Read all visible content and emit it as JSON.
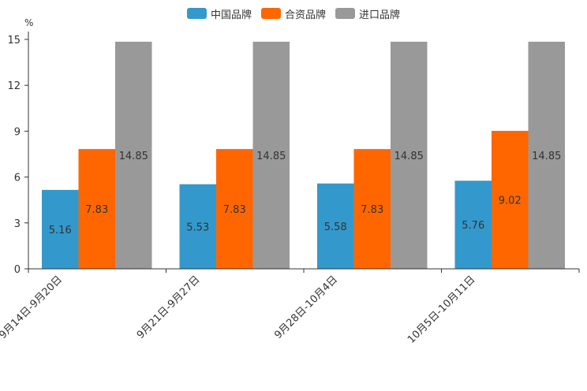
{
  "chart_data": {
    "type": "bar",
    "unit_label": "%",
    "categories": [
      "9月14日-9月20日",
      "9月21日-9月27日",
      "9月28日-10月4日",
      "10月5日-10月11日"
    ],
    "series": [
      {
        "name": "中国品牌",
        "color": "#3399cc",
        "values": [
          5.16,
          5.53,
          5.58,
          5.76
        ],
        "labels": [
          "5.16",
          "5.53",
          "5.58",
          "5.76"
        ]
      },
      {
        "name": "合资品牌",
        "color": "#ff6600",
        "values": [
          7.83,
          7.83,
          7.83,
          9.02
        ],
        "labels": [
          "7.83",
          "7.83",
          "7.83",
          "9.02"
        ]
      },
      {
        "name": "进口品牌",
        "color": "#999999",
        "values": [
          14.85,
          14.85,
          14.85,
          14.85
        ],
        "labels": [
          "14.85",
          "14.85",
          "14.85",
          "14.85"
        ]
      }
    ],
    "ylim": [
      0,
      15
    ],
    "yticks": [
      "0",
      "3",
      "6",
      "9",
      "12",
      "15"
    ],
    "legend_position": "top-center",
    "grid": false
  }
}
